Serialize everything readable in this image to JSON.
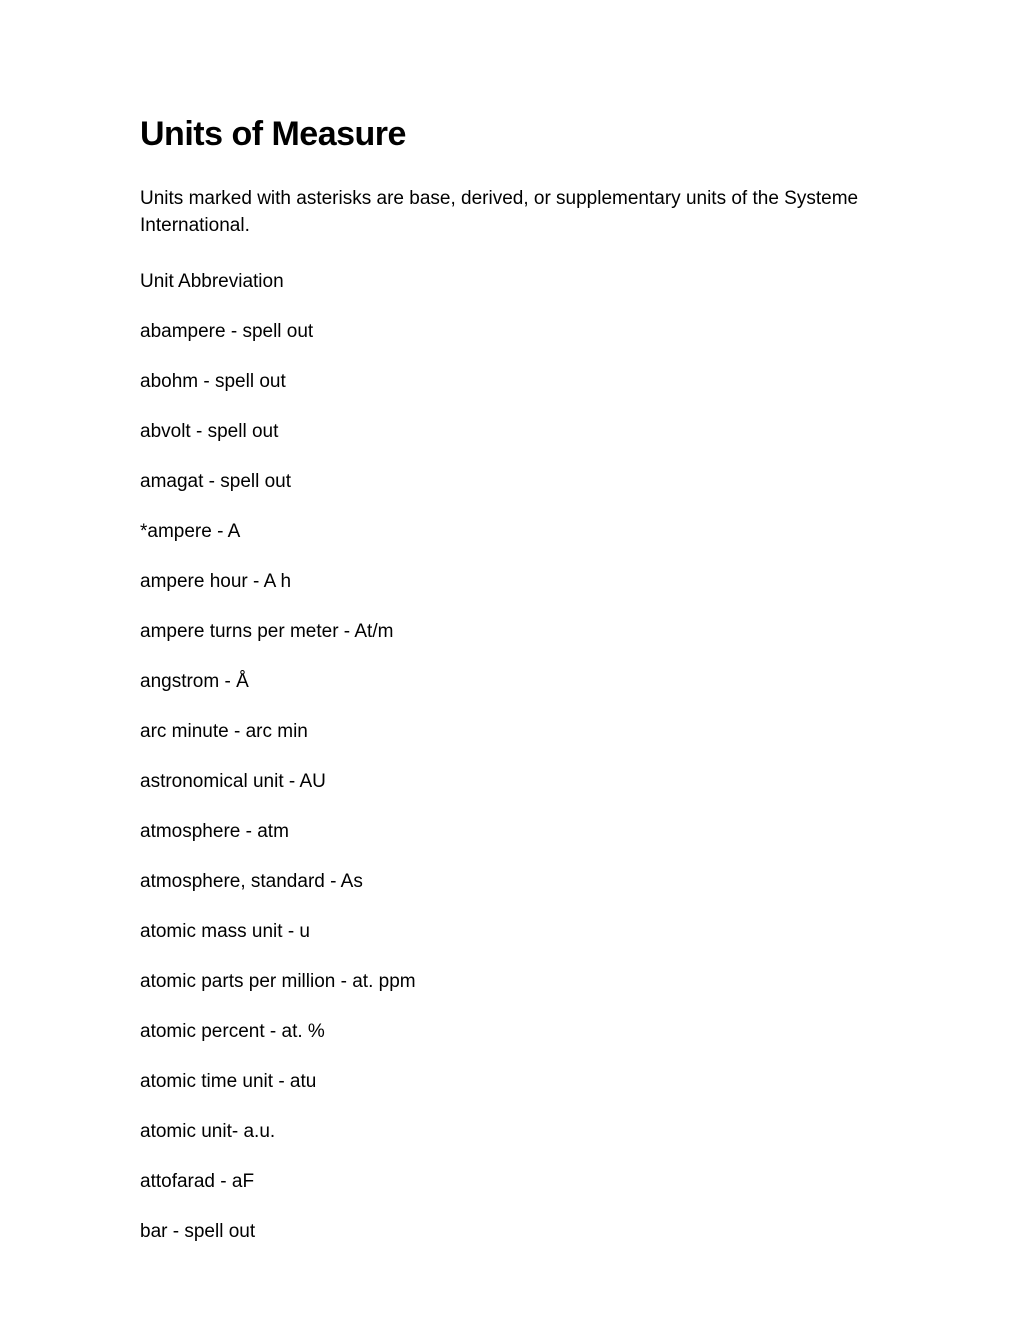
{
  "title": "Units of Measure",
  "intro": "Units marked with asterisks are base, derived, or supplementary units of the Systeme International.",
  "section_header": "Unit Abbreviation",
  "units": [
    "abampere - spell out",
    "abohm - spell out",
    "abvolt - spell out",
    "amagat - spell out",
    "*ampere - A",
    "ampere hour - A h",
    "ampere turns per meter - At/m",
    "angstrom - Å",
    "arc minute - arc min",
    "astronomical unit - AU",
    "atmosphere - atm",
    "atmosphere, standard - As",
    "atomic mass unit - u",
    "atomic parts per million - at. ppm",
    "atomic percent - at. %",
    "atomic time unit - atu",
    "atomic unit- a.u.",
    "attofarad - aF",
    "bar - spell out"
  ]
}
